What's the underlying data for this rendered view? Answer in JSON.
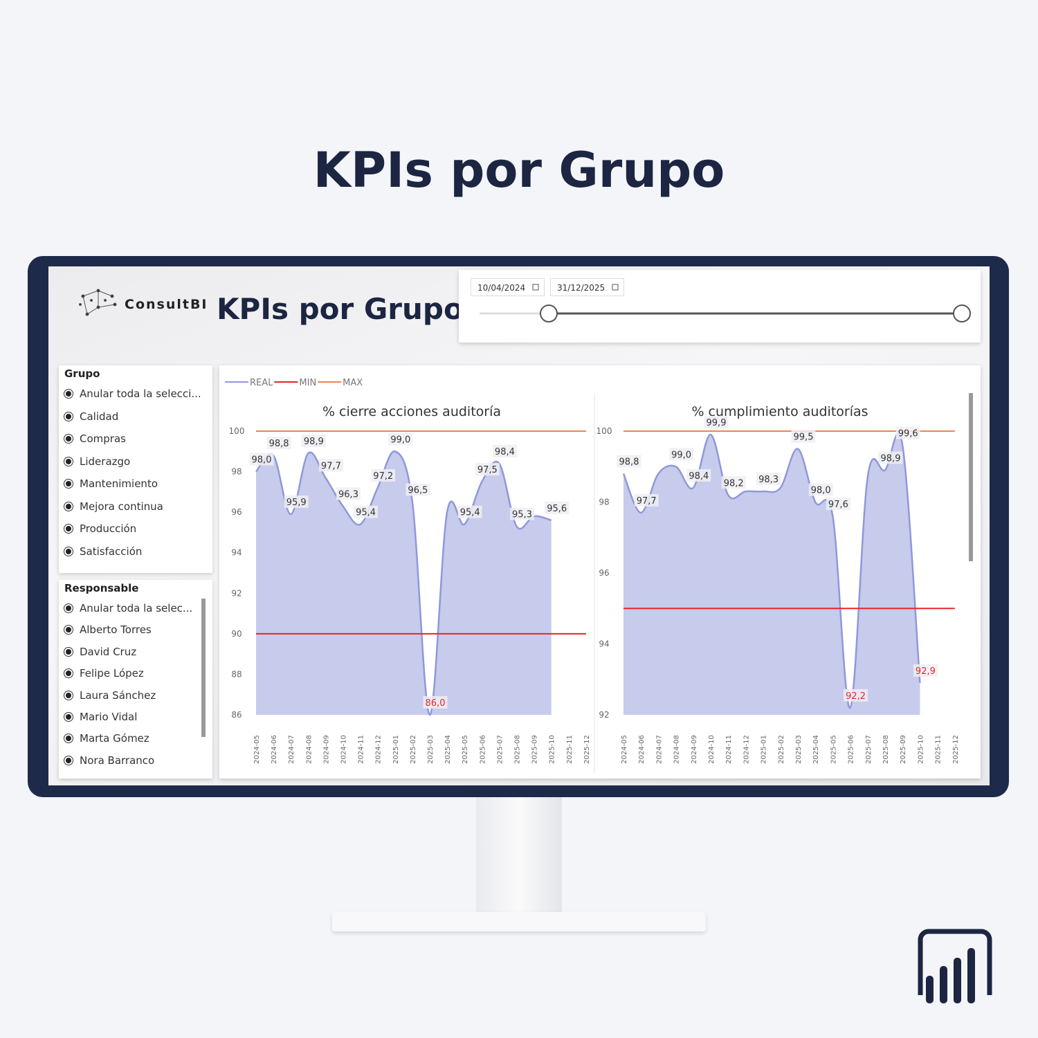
{
  "page_title": "KPIs por Grupo",
  "dashboard": {
    "logo_text": "ConsultBI",
    "title": "KPIs por Grupo",
    "date_range": {
      "start": "10/04/2024",
      "end": "31/12/2025"
    },
    "slicers": [
      {
        "title": "Grupo",
        "items": [
          "Anular toda la selecci...",
          "Calidad",
          "Compras",
          "Liderazgo",
          "Mantenimiento",
          "Mejora continua",
          "Producción",
          "Satisfacción"
        ]
      },
      {
        "title": "Responsable",
        "items": [
          "Anular toda la selec...",
          "Alberto Torres",
          "David Cruz",
          "Felipe López",
          "Laura Sánchez",
          "Mario Vidal",
          "Marta Gómez",
          "Nora Barranco"
        ]
      }
    ]
  },
  "chart_data": [
    {
      "type": "area",
      "title": "% cierre acciones auditoría",
      "categories": [
        "2024-05",
        "2024-06",
        "2024-07",
        "2024-08",
        "2024-09",
        "2024-10",
        "2024-11",
        "2024-12",
        "2025-01",
        "2025-02",
        "2025-03",
        "2025-04",
        "2025-05",
        "2025-06",
        "2025-07",
        "2025-08",
        "2025-09",
        "2025-10",
        "2025-11",
        "2025-12"
      ],
      "series": [
        {
          "name": "REAL",
          "color": "#8f98d9",
          "values": [
            98.0,
            98.8,
            95.9,
            98.9,
            97.7,
            96.3,
            95.4,
            97.2,
            99.0,
            96.5,
            86.0,
            96.0,
            95.4,
            97.5,
            98.4,
            95.3,
            95.8,
            95.6,
            null,
            null
          ],
          "value_labels": [
            "98,0",
            "98,8",
            "95,9",
            "98,9",
            "97,7",
            "96,3",
            "95,4",
            "97,2",
            "99,0",
            "96,5",
            "86,0",
            null,
            "95,4",
            "97,5",
            "98,4",
            "95,3",
            null,
            "95,6",
            null,
            null
          ]
        }
      ],
      "ref_lines": [
        {
          "name": "MIN",
          "color": "#e5262a",
          "value": 90
        },
        {
          "name": "MAX",
          "color": "#f0824f",
          "value": 100
        }
      ],
      "ylim": [
        86,
        100
      ],
      "yticks": [
        86,
        88,
        90,
        92,
        94,
        96,
        98,
        100
      ]
    },
    {
      "type": "area",
      "title": "% cumplimiento auditorías",
      "categories": [
        "2024-05",
        "2024-06",
        "2024-07",
        "2024-08",
        "2024-09",
        "2024-10",
        "2024-11",
        "2024-12",
        "2025-01",
        "2025-02",
        "2025-03",
        "2025-04",
        "2025-05",
        "2025-06",
        "2025-07",
        "2025-08",
        "2025-09",
        "2025-10",
        "2025-11",
        "2025-12"
      ],
      "series": [
        {
          "color": "#8f98d9",
          "values": [
            98.8,
            97.7,
            98.8,
            99.0,
            98.4,
            99.9,
            98.2,
            98.3,
            98.3,
            98.4,
            99.5,
            98.0,
            97.6,
            92.2,
            98.7,
            98.9,
            99.6,
            92.9,
            null,
            null
          ],
          "value_labels": [
            "98,8",
            "97,7",
            null,
            "99,0",
            "98,4",
            "99,9",
            "98,2",
            null,
            "98,3",
            null,
            "99,5",
            "98,0",
            "97,6",
            "92,2",
            null,
            "98,9",
            "99,6",
            "92,9",
            null,
            null
          ]
        }
      ],
      "ref_lines": [
        {
          "color": "#e5262a",
          "value": 95
        },
        {
          "color": "#f0824f",
          "value": 100
        }
      ],
      "ylim": [
        92,
        100
      ],
      "yticks": [
        92,
        94,
        96,
        98,
        100
      ]
    }
  ]
}
